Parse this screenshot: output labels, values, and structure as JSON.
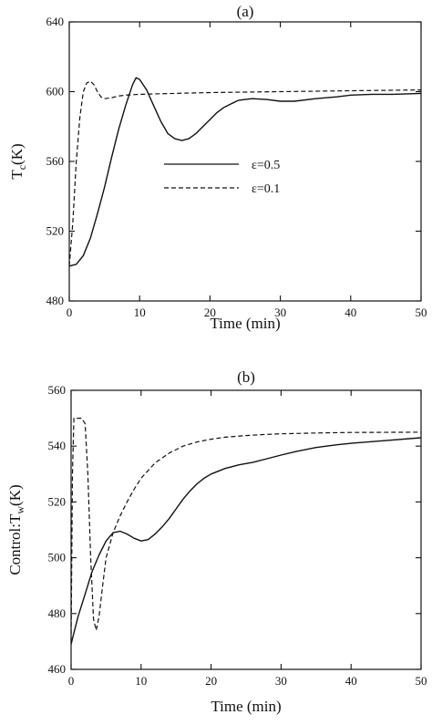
{
  "chart_data": [
    {
      "type": "line",
      "panel_label": "(a)",
      "xlabel": "Time (min)",
      "ylabel": "T",
      "ylabel_sub": "c",
      "ylabel_unit": "(K)",
      "xlim": [
        0,
        50
      ],
      "ylim": [
        480,
        640
      ],
      "xticks": [
        0,
        10,
        20,
        30,
        40,
        50
      ],
      "yticks": [
        480,
        520,
        560,
        600,
        640
      ],
      "grid": false,
      "legend_position": "center",
      "series": [
        {
          "name": "ε=0.5",
          "style": "solid",
          "x": [
            0,
            1,
            2,
            3,
            4,
            5,
            6,
            7,
            8,
            9,
            9.5,
            10,
            11,
            12,
            13,
            14,
            15,
            16,
            17,
            18,
            19,
            20,
            21,
            22,
            23,
            24,
            25,
            26,
            28,
            30,
            32,
            35,
            38,
            40,
            43,
            46,
            50
          ],
          "y": [
            500,
            501,
            506,
            516,
            530,
            545,
            562,
            578,
            592,
            604,
            608,
            607,
            601,
            592,
            583,
            576,
            573,
            572,
            573,
            576,
            580,
            584,
            588,
            591,
            593,
            595,
            595.5,
            596,
            595.5,
            594.5,
            594.5,
            596,
            597,
            598,
            598.5,
            598.5,
            599
          ]
        },
        {
          "name": "ε=0.1",
          "style": "dashed",
          "x": [
            0,
            0.5,
            1,
            1.5,
            2,
            2.5,
            3,
            3.5,
            4,
            4.5,
            5,
            6,
            7,
            8,
            10,
            15,
            20,
            30,
            40,
            50
          ],
          "y": [
            500,
            525,
            560,
            585,
            600,
            605,
            606,
            604,
            600,
            597,
            596,
            596.5,
            597.5,
            598,
            598.5,
            599,
            599.5,
            600,
            600.5,
            601
          ]
        }
      ]
    },
    {
      "type": "line",
      "panel_label": "(b)",
      "xlabel": "Time (min)",
      "ylabel": "Control:T",
      "ylabel_sub": "w",
      "ylabel_unit": "(K)",
      "xlim": [
        0,
        50
      ],
      "ylim": [
        460,
        560
      ],
      "xticks": [
        0,
        10,
        20,
        30,
        40,
        50
      ],
      "yticks": [
        460,
        480,
        500,
        520,
        540,
        560
      ],
      "grid": false,
      "series": [
        {
          "name": "ε=0.5",
          "style": "solid",
          "x": [
            0,
            0.5,
            1,
            2,
            3,
            4,
            5,
            6,
            7,
            8,
            9,
            10,
            11,
            12,
            13,
            14,
            15,
            16,
            17,
            18,
            19,
            20,
            22,
            24,
            26,
            28,
            30,
            32,
            35,
            38,
            40,
            45,
            50
          ],
          "y": [
            469,
            474,
            479,
            487,
            495,
            501,
            506,
            509,
            509.5,
            508.5,
            507,
            506,
            506.5,
            508.5,
            511,
            514,
            517.5,
            521,
            524,
            526.5,
            528.5,
            530,
            532,
            533.3,
            534.2,
            535.5,
            536.8,
            538,
            539.5,
            540.5,
            541,
            542,
            543
          ]
        },
        {
          "name": "ε=0.1",
          "style": "dashed",
          "x": [
            0,
            0.2,
            0.4,
            1,
            1.5,
            2,
            2.4,
            2.8,
            3.2,
            3.6,
            4,
            4.5,
            5,
            6,
            7,
            8,
            9,
            10,
            12,
            14,
            16,
            18,
            20,
            22,
            25,
            28,
            30,
            35,
            40,
            50
          ],
          "y": [
            470,
            530,
            550,
            550,
            550,
            548,
            530,
            500,
            478,
            474,
            479,
            490,
            500,
            509,
            515,
            520,
            524.5,
            528.5,
            534,
            537.5,
            540,
            541.5,
            542.5,
            543.2,
            543.8,
            544.2,
            544.4,
            544.7,
            544.9,
            545
          ]
        }
      ]
    }
  ]
}
